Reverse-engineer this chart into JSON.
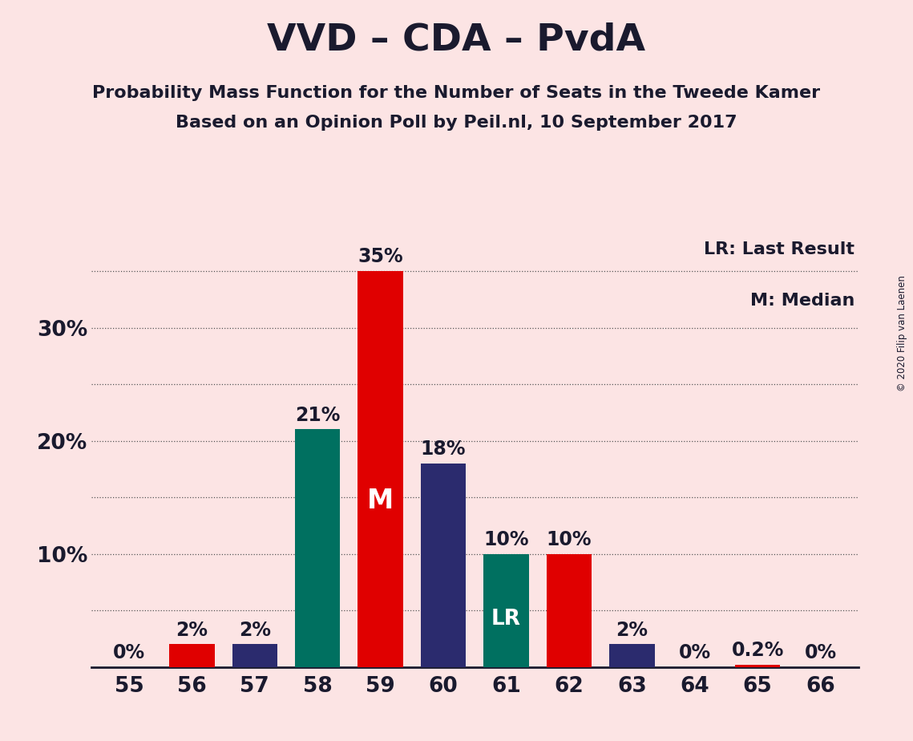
{
  "title": "VVD – CDA – PvdA",
  "subtitle1": "Probability Mass Function for the Number of Seats in the Tweede Kamer",
  "subtitle2": "Based on an Opinion Poll by Peil.nl, 10 September 2017",
  "copyright": "© 2020 Filip van Laenen",
  "legend_lr": "LR: Last Result",
  "legend_m": "M: Median",
  "background_color": "#fce4e4",
  "seats": [
    55,
    56,
    57,
    58,
    59,
    60,
    61,
    62,
    63,
    64,
    65,
    66
  ],
  "values": [
    0,
    2,
    2,
    21,
    35,
    18,
    10,
    10,
    2,
    0,
    0.2,
    0
  ],
  "bar_colors": [
    "#fce4e4",
    "#e00000",
    "#2b2b6e",
    "#007060",
    "#e00000",
    "#2b2b6e",
    "#007060",
    "#e00000",
    "#2b2b6e",
    "#fce4e4",
    "#e00000",
    "#fce4e4"
  ],
  "median_seat": 59,
  "lr_seat": 61,
  "ytick_labels": [
    "10%",
    "20%",
    "30%"
  ],
  "ytick_values": [
    10,
    20,
    30
  ],
  "ygrid_values": [
    5,
    10,
    15,
    20,
    25,
    30,
    35
  ],
  "ylim": [
    0,
    38
  ],
  "title_fontsize": 34,
  "subtitle_fontsize": 16,
  "axis_label_fontsize": 19,
  "bar_label_fontsize": 17,
  "legend_fontsize": 16
}
